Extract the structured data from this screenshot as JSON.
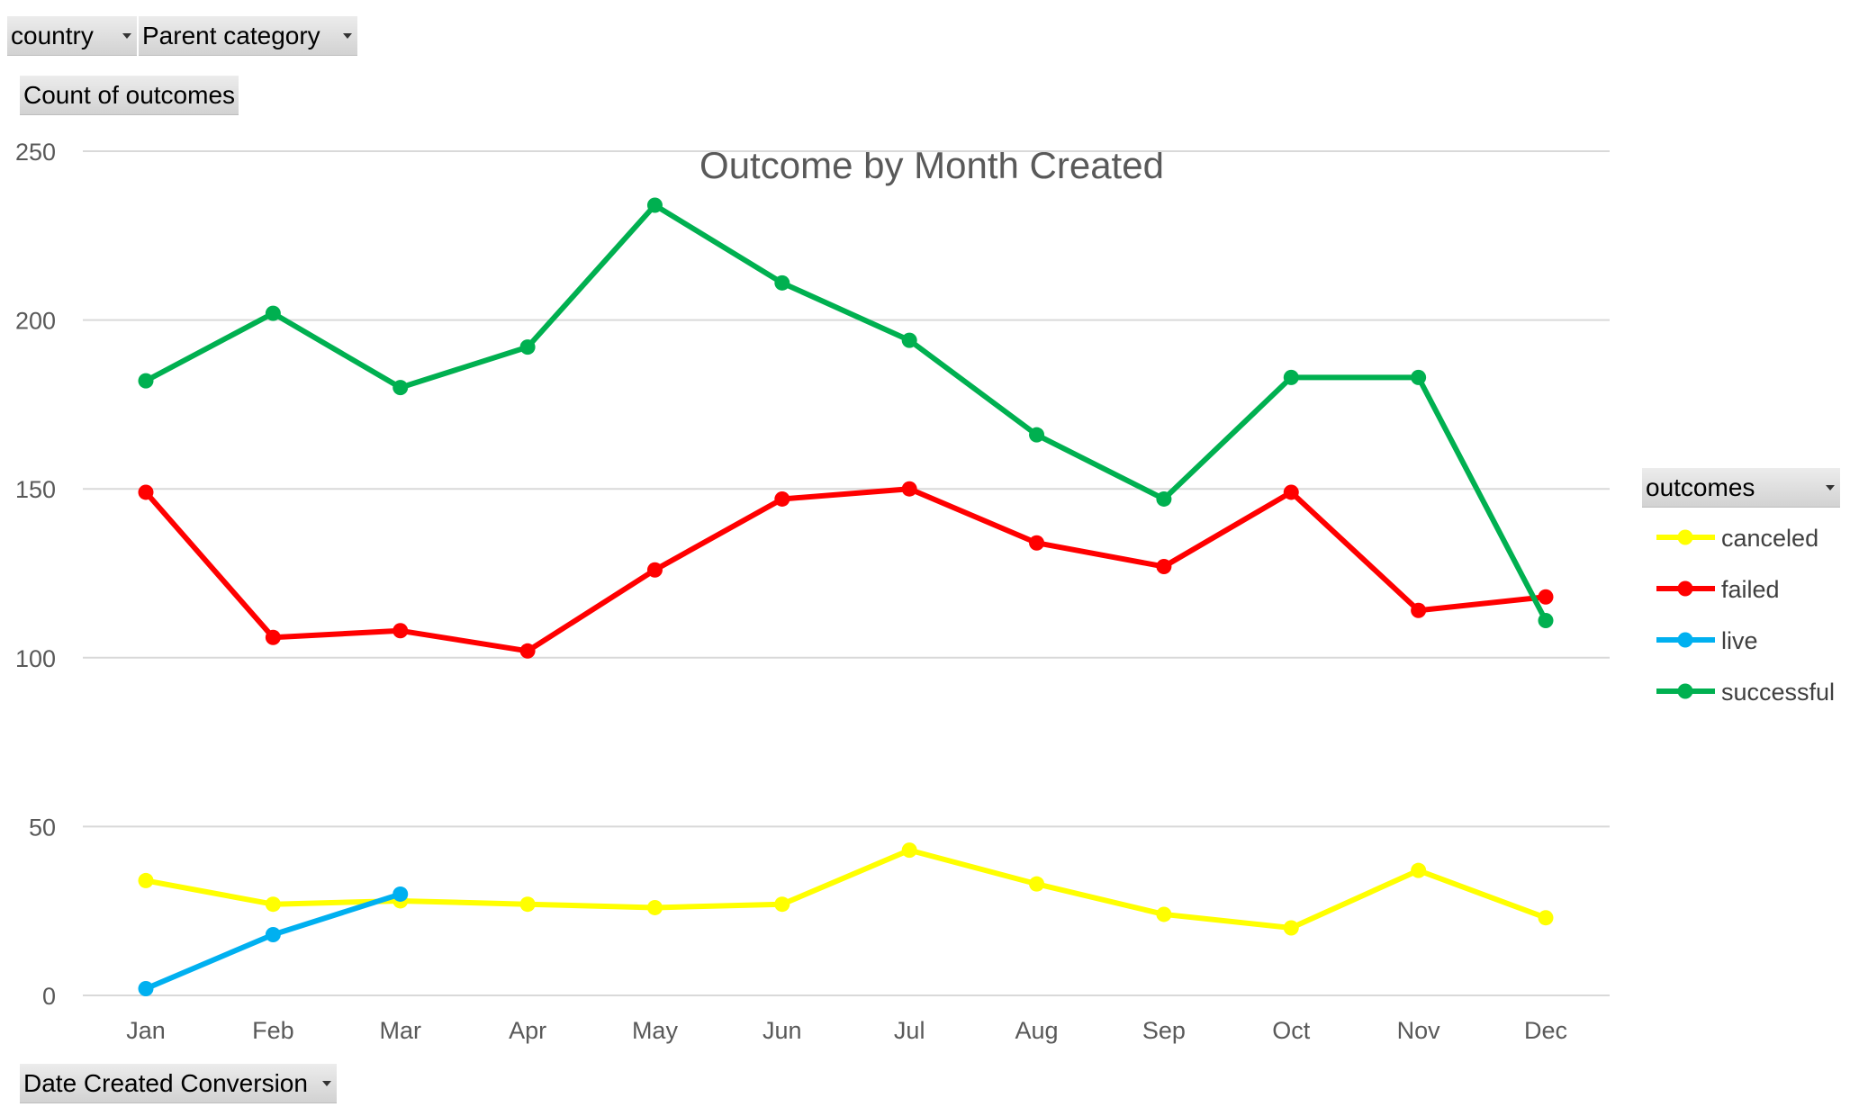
{
  "filters": {
    "country_label": "country",
    "parent_category_label": "Parent category",
    "values_label": "Count of outcomes",
    "axis_field_label": "Date Created Conversion",
    "legend_field_label": "outcomes"
  },
  "colors": {
    "canceled": "#ffff00",
    "failed": "#ff0000",
    "live": "#00b0f0",
    "successful": "#00b050"
  },
  "chart_data": {
    "type": "line",
    "title": "Outcome by Month Created",
    "xlabel": "",
    "ylabel": "",
    "categories": [
      "Jan",
      "Feb",
      "Mar",
      "Apr",
      "May",
      "Jun",
      "Jul",
      "Aug",
      "Sep",
      "Oct",
      "Nov",
      "Dec"
    ],
    "ylim": [
      0,
      250
    ],
    "yticks": [
      0,
      50,
      100,
      150,
      200,
      250
    ],
    "grid": true,
    "legend_position": "right",
    "series": [
      {
        "name": "canceled",
        "color": "#ffff00",
        "values": [
          34,
          27,
          28,
          27,
          26,
          27,
          43,
          33,
          24,
          20,
          37,
          23
        ]
      },
      {
        "name": "failed",
        "color": "#ff0000",
        "values": [
          149,
          106,
          108,
          102,
          126,
          147,
          150,
          134,
          127,
          149,
          114,
          118
        ]
      },
      {
        "name": "live",
        "color": "#00b0f0",
        "values": [
          2,
          18,
          30,
          null,
          null,
          null,
          null,
          null,
          null,
          null,
          null,
          null
        ]
      },
      {
        "name": "successful",
        "color": "#00b050",
        "values": [
          182,
          202,
          180,
          192,
          234,
          211,
          194,
          166,
          147,
          183,
          183,
          111
        ]
      }
    ]
  }
}
